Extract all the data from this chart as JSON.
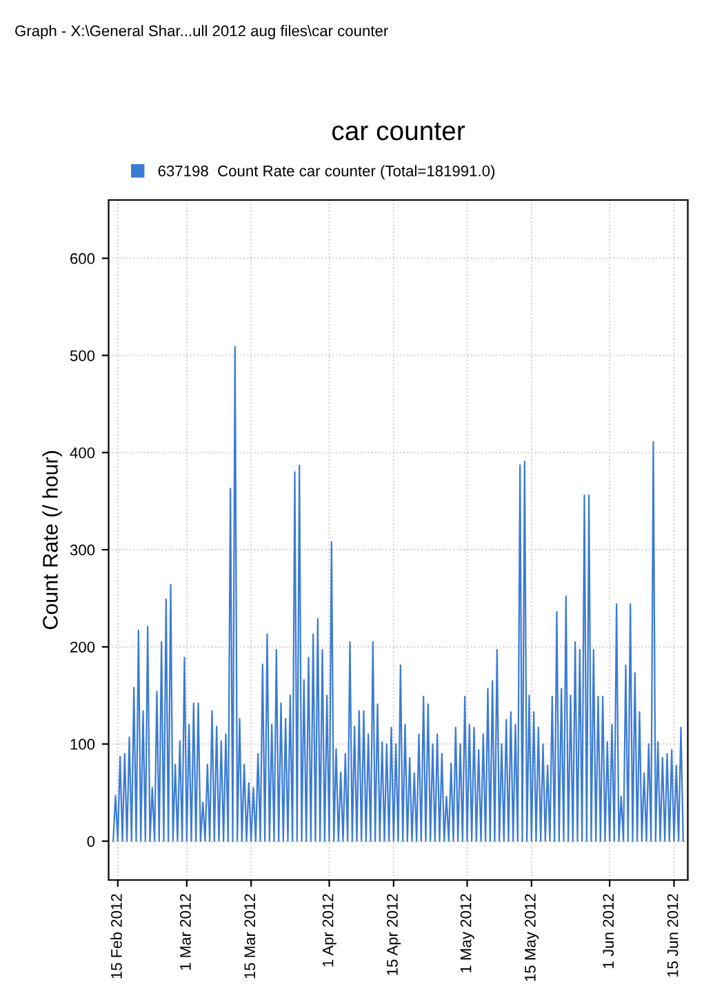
{
  "chart_data": {
    "type": "line",
    "title": "car counter",
    "ylabel": "Count Rate (/ hour)",
    "annotations": [
      "Graph - X:\\General Shar...ull 2012 aug files\\car counter"
    ],
    "x": [
      "2012-02-14T00:00",
      "2012-02-14T12:00",
      "2012-02-15T00:00",
      "2012-02-15T12:00",
      "2012-02-16T00:00",
      "2012-02-16T12:00",
      "2012-02-17T00:00",
      "2012-02-17T12:00",
      "2012-02-18T00:00",
      "2012-02-18T12:00",
      "2012-02-19T00:00",
      "2012-02-19T12:00",
      "2012-02-20T00:00",
      "2012-02-20T12:00",
      "2012-02-21T00:00",
      "2012-02-21T12:00",
      "2012-02-22T00:00",
      "2012-02-22T12:00",
      "2012-02-23T00:00",
      "2012-02-23T12:00",
      "2012-02-24T00:00",
      "2012-02-24T12:00",
      "2012-02-25T00:00",
      "2012-02-25T12:00",
      "2012-02-26T00:00",
      "2012-02-26T12:00",
      "2012-02-27T00:00",
      "2012-02-27T12:00",
      "2012-02-28T00:00",
      "2012-02-28T12:00",
      "2012-02-29T00:00",
      "2012-02-29T12:00",
      "2012-03-01T00:00",
      "2012-03-01T12:00",
      "2012-03-02T00:00",
      "2012-03-02T12:00",
      "2012-03-03T00:00",
      "2012-03-03T12:00",
      "2012-03-04T00:00",
      "2012-03-04T12:00",
      "2012-03-05T00:00",
      "2012-03-05T12:00",
      "2012-03-06T00:00",
      "2012-03-06T12:00",
      "2012-03-07T00:00",
      "2012-03-07T12:00",
      "2012-03-08T00:00",
      "2012-03-08T12:00",
      "2012-03-09T00:00",
      "2012-03-09T12:00",
      "2012-03-10T00:00",
      "2012-03-10T12:00",
      "2012-03-11T00:00",
      "2012-03-11T12:00",
      "2012-03-12T00:00",
      "2012-03-12T12:00",
      "2012-03-13T00:00",
      "2012-03-13T12:00",
      "2012-03-14T00:00",
      "2012-03-14T12:00",
      "2012-03-15T00:00",
      "2012-03-15T12:00",
      "2012-03-16T00:00",
      "2012-03-16T12:00",
      "2012-03-17T00:00",
      "2012-03-17T12:00",
      "2012-03-18T00:00",
      "2012-03-18T12:00",
      "2012-03-19T00:00",
      "2012-03-19T12:00",
      "2012-03-20T00:00",
      "2012-03-20T12:00",
      "2012-03-21T00:00",
      "2012-03-21T12:00",
      "2012-03-22T00:00",
      "2012-03-22T12:00",
      "2012-03-23T00:00",
      "2012-03-23T12:00",
      "2012-03-24T00:00",
      "2012-03-24T12:00",
      "2012-03-25T00:00",
      "2012-03-25T12:00",
      "2012-03-26T00:00",
      "2012-03-26T12:00",
      "2012-03-27T00:00",
      "2012-03-27T12:00",
      "2012-03-28T00:00",
      "2012-03-28T12:00",
      "2012-03-29T00:00",
      "2012-03-29T12:00",
      "2012-03-30T00:00",
      "2012-03-30T12:00",
      "2012-03-31T00:00",
      "2012-03-31T12:00",
      "2012-04-01T00:00",
      "2012-04-01T12:00",
      "2012-04-02T00:00",
      "2012-04-02T12:00",
      "2012-04-03T00:00",
      "2012-04-03T12:00",
      "2012-04-04T00:00",
      "2012-04-04T12:00",
      "2012-04-05T00:00",
      "2012-04-05T12:00",
      "2012-04-06T00:00",
      "2012-04-06T12:00",
      "2012-04-07T00:00",
      "2012-04-07T12:00",
      "2012-04-08T00:00",
      "2012-04-08T12:00",
      "2012-04-09T00:00",
      "2012-04-09T12:00",
      "2012-04-10T00:00",
      "2012-04-10T12:00",
      "2012-04-11T00:00",
      "2012-04-11T12:00",
      "2012-04-12T00:00",
      "2012-04-12T12:00",
      "2012-04-13T00:00",
      "2012-04-13T12:00",
      "2012-04-14T00:00",
      "2012-04-14T12:00",
      "2012-04-15T00:00",
      "2012-04-15T12:00",
      "2012-04-16T00:00",
      "2012-04-16T12:00",
      "2012-04-17T00:00",
      "2012-04-17T12:00",
      "2012-04-18T00:00",
      "2012-04-18T12:00",
      "2012-04-19T00:00",
      "2012-04-19T12:00",
      "2012-04-20T00:00",
      "2012-04-20T12:00",
      "2012-04-21T00:00",
      "2012-04-21T12:00",
      "2012-04-22T00:00",
      "2012-04-22T12:00",
      "2012-04-23T00:00",
      "2012-04-23T12:00",
      "2012-04-24T00:00",
      "2012-04-24T12:00",
      "2012-04-25T00:00",
      "2012-04-25T12:00",
      "2012-04-26T00:00",
      "2012-04-26T12:00",
      "2012-04-27T00:00",
      "2012-04-27T12:00",
      "2012-04-28T00:00",
      "2012-04-28T12:00",
      "2012-04-29T00:00",
      "2012-04-29T12:00",
      "2012-04-30T00:00",
      "2012-04-30T12:00",
      "2012-05-01T00:00",
      "2012-05-01T12:00",
      "2012-05-02T00:00",
      "2012-05-02T12:00",
      "2012-05-03T00:00",
      "2012-05-03T12:00",
      "2012-05-04T00:00",
      "2012-05-04T12:00",
      "2012-05-05T00:00",
      "2012-05-05T12:00",
      "2012-05-06T00:00",
      "2012-05-06T12:00",
      "2012-05-07T00:00",
      "2012-05-07T12:00",
      "2012-05-08T00:00",
      "2012-05-08T12:00",
      "2012-05-09T00:00",
      "2012-05-09T12:00",
      "2012-05-10T00:00",
      "2012-05-10T12:00",
      "2012-05-11T00:00",
      "2012-05-11T12:00",
      "2012-05-12T00:00",
      "2012-05-12T12:00",
      "2012-05-13T00:00",
      "2012-05-13T12:00",
      "2012-05-14T00:00",
      "2012-05-14T12:00",
      "2012-05-15T00:00",
      "2012-05-15T12:00",
      "2012-05-16T00:00",
      "2012-05-16T12:00",
      "2012-05-17T00:00",
      "2012-05-17T12:00",
      "2012-05-18T00:00",
      "2012-05-18T12:00",
      "2012-05-19T00:00",
      "2012-05-19T12:00",
      "2012-05-20T00:00",
      "2012-05-20T12:00",
      "2012-05-21T00:00",
      "2012-05-21T12:00",
      "2012-05-22T00:00",
      "2012-05-22T12:00",
      "2012-05-23T00:00",
      "2012-05-23T12:00",
      "2012-05-24T00:00",
      "2012-05-24T12:00",
      "2012-05-25T00:00",
      "2012-05-25T12:00",
      "2012-05-26T00:00",
      "2012-05-26T12:00",
      "2012-05-27T00:00",
      "2012-05-27T12:00",
      "2012-05-28T00:00",
      "2012-05-28T12:00",
      "2012-05-29T00:00",
      "2012-05-29T12:00",
      "2012-05-30T00:00",
      "2012-05-30T12:00",
      "2012-05-31T00:00",
      "2012-05-31T12:00",
      "2012-06-01T00:00",
      "2012-06-01T12:00",
      "2012-06-02T00:00",
      "2012-06-02T12:00",
      "2012-06-03T00:00",
      "2012-06-03T12:00",
      "2012-06-04T00:00",
      "2012-06-04T12:00",
      "2012-06-05T00:00",
      "2012-06-05T12:00",
      "2012-06-06T00:00",
      "2012-06-06T12:00",
      "2012-06-07T00:00",
      "2012-06-07T12:00",
      "2012-06-08T00:00",
      "2012-06-08T12:00",
      "2012-06-09T00:00",
      "2012-06-09T12:00",
      "2012-06-10T00:00",
      "2012-06-10T12:00",
      "2012-06-11T00:00",
      "2012-06-11T12:00",
      "2012-06-12T00:00",
      "2012-06-12T12:00",
      "2012-06-13T00:00",
      "2012-06-13T12:00",
      "2012-06-14T00:00",
      "2012-06-14T12:00",
      "2012-06-15T00:00",
      "2012-06-15T12:00",
      "2012-06-16T00:00",
      "2012-06-16T12:00",
      "2012-06-17T00:00"
    ],
    "series": [
      {
        "name": "637198  Count Rate car counter (Total=181991.0)",
        "color": "#3a7bd5",
        "values": [
          0,
          47,
          0,
          87,
          0,
          90,
          0,
          107,
          0,
          158,
          0,
          217,
          0,
          134,
          0,
          221,
          0,
          55,
          0,
          154,
          0,
          205,
          0,
          249,
          0,
          264,
          0,
          79,
          0,
          103,
          0,
          189,
          0,
          120,
          0,
          142,
          0,
          142,
          0,
          40,
          0,
          79,
          0,
          134,
          0,
          118,
          0,
          103,
          0,
          110,
          0,
          363,
          0,
          509,
          0,
          126,
          0,
          79,
          0,
          60,
          0,
          55,
          0,
          90,
          0,
          182,
          0,
          213,
          0,
          120,
          0,
          197,
          0,
          142,
          0,
          126,
          0,
          150,
          0,
          380,
          0,
          387,
          0,
          166,
          0,
          189,
          0,
          213,
          0,
          229,
          0,
          197,
          0,
          150,
          0,
          308,
          0,
          95,
          0,
          71,
          0,
          90,
          0,
          205,
          0,
          118,
          0,
          134,
          0,
          134,
          0,
          110,
          0,
          205,
          0,
          141,
          0,
          102,
          0,
          100,
          0,
          117,
          0,
          100,
          0,
          181,
          0,
          120,
          0,
          86,
          0,
          70,
          0,
          110,
          0,
          149,
          0,
          141,
          0,
          100,
          0,
          110,
          0,
          90,
          0,
          46,
          0,
          80,
          0,
          117,
          0,
          100,
          0,
          149,
          0,
          120,
          0,
          117,
          0,
          94,
          0,
          110,
          0,
          157,
          0,
          165,
          0,
          197,
          0,
          100,
          0,
          125,
          0,
          133,
          0,
          120,
          0,
          387,
          0,
          391,
          0,
          150,
          0,
          133,
          0,
          117,
          0,
          100,
          0,
          78,
          0,
          149,
          0,
          236,
          0,
          157,
          0,
          252,
          0,
          150,
          0,
          205,
          0,
          197,
          0,
          356,
          0,
          356,
          0,
          197,
          0,
          149,
          0,
          149,
          0,
          102,
          0,
          120,
          0,
          244,
          0,
          46,
          0,
          181,
          0,
          244,
          0,
          173,
          0,
          133,
          0,
          70,
          0,
          100,
          0,
          411,
          0,
          102,
          0,
          86,
          0,
          90,
          0,
          94,
          0,
          78,
          0,
          117,
          0
        ]
      }
    ],
    "xlim": [
      "2012-02-13",
      "2012-06-18"
    ],
    "xticks": [
      {
        "value": "2012-02-15",
        "label": "15 Feb 2012"
      },
      {
        "value": "2012-03-01",
        "label": "1 Mar 2012"
      },
      {
        "value": "2012-03-15",
        "label": "15 Mar 2012"
      },
      {
        "value": "2012-04-01",
        "label": "1 Apr 2012"
      },
      {
        "value": "2012-04-15",
        "label": "15 Apr 2012"
      },
      {
        "value": "2012-05-01",
        "label": "1 May 2012"
      },
      {
        "value": "2012-05-15",
        "label": "15 May 2012"
      },
      {
        "value": "2012-06-01",
        "label": "1 Jun 2012"
      },
      {
        "value": "2012-06-15",
        "label": "15 Jun 2012"
      }
    ],
    "ylim": [
      -40,
      660
    ],
    "yticks": [
      0,
      100,
      200,
      300,
      400,
      500,
      600
    ],
    "grid": true,
    "legend": "top left",
    "marker": "none",
    "line_style": "solid"
  }
}
